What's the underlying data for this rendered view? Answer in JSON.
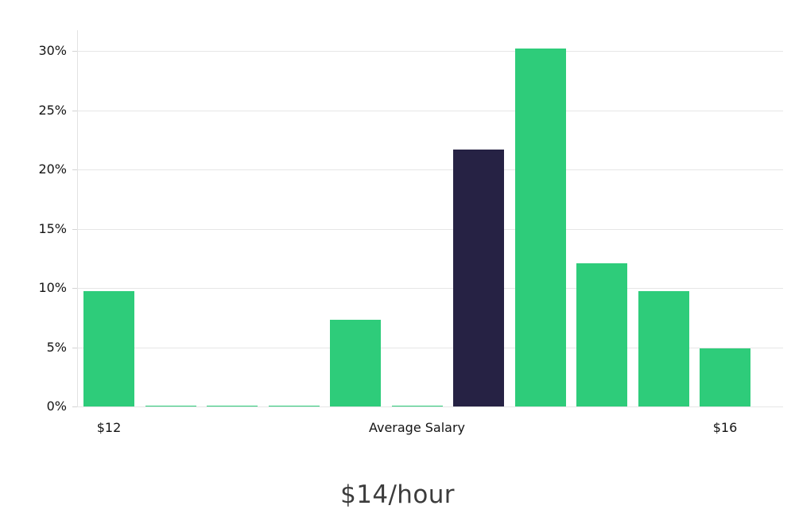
{
  "title": "$14/hour",
  "chart_data": {
    "type": "bar",
    "title": "$14/hour",
    "ylim": [
      0,
      30
    ],
    "yticks": [
      0,
      5,
      10,
      15,
      20,
      25,
      30
    ],
    "ytick_labels": [
      "0%",
      "5%",
      "10%",
      "15%",
      "20%",
      "25%",
      "30%"
    ],
    "grid": true,
    "legend": "none",
    "colors": {
      "bar_default": "#2ecc7a",
      "bar_highlight": "#262244",
      "gridline": "#e6e6e6",
      "text": "#151515",
      "title_text": "#3c3c3c"
    },
    "bars": [
      {
        "value": 9.7,
        "highlight": false
      },
      {
        "value": 0.1,
        "highlight": false
      },
      {
        "value": 0.1,
        "highlight": false
      },
      {
        "value": 0.1,
        "highlight": false
      },
      {
        "value": 7.3,
        "highlight": false
      },
      {
        "value": 0.1,
        "highlight": false
      },
      {
        "value": 21.7,
        "highlight": true
      },
      {
        "value": 30.2,
        "highlight": false
      },
      {
        "value": 12.1,
        "highlight": false
      },
      {
        "value": 9.7,
        "highlight": false
      },
      {
        "value": 4.9,
        "highlight": false
      }
    ],
    "x_labels": [
      {
        "bar_index": 0,
        "label": "$12"
      },
      {
        "bar_index": 5,
        "label": "Average Salary"
      },
      {
        "bar_index": 10,
        "label": "$16"
      }
    ]
  }
}
